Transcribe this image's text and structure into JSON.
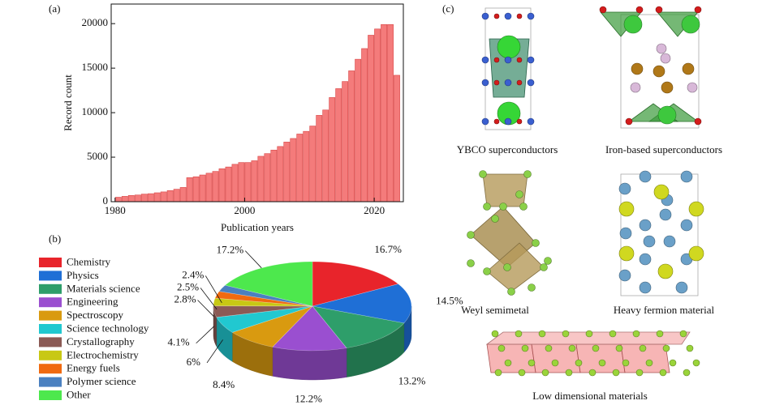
{
  "panel_labels": [
    "(a)",
    "(b)",
    "(c)"
  ],
  "chart_data": [
    {
      "type": "bar",
      "ylabel": "Record count",
      "xlabel": "Publication years",
      "color": "#f47b7b",
      "edge_color": "#d84545",
      "x": [
        1980,
        1981,
        1982,
        1983,
        1984,
        1985,
        1986,
        1987,
        1988,
        1989,
        1990,
        1991,
        1992,
        1993,
        1994,
        1995,
        1996,
        1997,
        1998,
        1999,
        2000,
        2001,
        2002,
        2003,
        2004,
        2005,
        2006,
        2007,
        2008,
        2009,
        2010,
        2011,
        2012,
        2013,
        2014,
        2015,
        2016,
        2017,
        2018,
        2019,
        2020,
        2021,
        2022,
        2023
      ],
      "values": [
        500,
        600,
        700,
        750,
        850,
        900,
        1000,
        1100,
        1250,
        1400,
        1600,
        2700,
        2800,
        3000,
        3200,
        3400,
        3700,
        3900,
        4200,
        4400,
        4400,
        4600,
        5100,
        5400,
        5800,
        6200,
        6700,
        7100,
        7600,
        7900,
        8500,
        9700,
        10300,
        11700,
        12700,
        13500,
        14700,
        16000,
        17200,
        18700,
        19400,
        19900,
        19900,
        14200
      ],
      "xlim": [
        1979.4,
        2024.5
      ],
      "xticks": [
        1980,
        2000,
        2020
      ],
      "ylim": [
        0,
        22200
      ],
      "yticks": [
        0,
        5000,
        10000,
        15000,
        20000
      ]
    },
    {
      "type": "pie",
      "categories": [
        "Chemistry",
        "Physics",
        "Materials science",
        "Engineering",
        "Spectroscopy",
        "Science technology",
        "Crystallography",
        "Electrochemistry",
        "Energy fuels",
        "Polymer science",
        "Other"
      ],
      "values": [
        16.7,
        14.5,
        13.2,
        12.2,
        8.4,
        6,
        4.1,
        2.8,
        2.5,
        2.4,
        17.2
      ],
      "value_labels": [
        "16.7%",
        "14.5%",
        "13.2%",
        "12.2%",
        "8.4%",
        "6%",
        "4.1%",
        "2.8%",
        "2.5%",
        "2.4%",
        "17.2%"
      ],
      "colors": [
        "#e8242b",
        "#1f6fd6",
        "#2e9e6a",
        "#9a4fd0",
        "#d99a10",
        "#21c8d0",
        "#8b5a55",
        "#c8c814",
        "#f06a10",
        "#4a80c0",
        "#4de84d"
      ]
    }
  ],
  "structures": [
    "YBCO superconductors",
    "Iron-based superconductors",
    "Weyl semimetal",
    "Heavy fermion material",
    "Low dimensional materials"
  ]
}
